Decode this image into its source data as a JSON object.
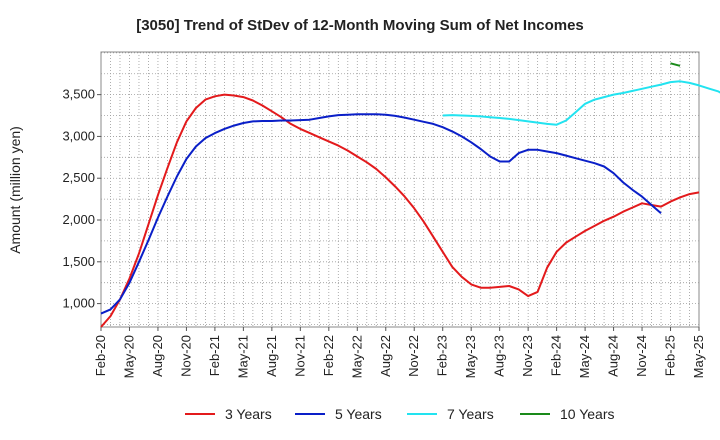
{
  "chart_data": {
    "type": "line",
    "title": "[3050]  Trend of StDev of 12-Month Moving Sum of Net Incomes",
    "ylabel": "Amount (million yen)",
    "xlabel": "",
    "x_start": "2020-02",
    "x_ticks": [
      "Feb-20",
      "May-20",
      "Aug-20",
      "Nov-20",
      "Feb-21",
      "May-21",
      "Aug-21",
      "Nov-21",
      "Feb-22",
      "May-22",
      "Aug-22",
      "Nov-22",
      "Feb-23",
      "May-23",
      "Aug-23",
      "Nov-23",
      "Feb-24",
      "May-24",
      "Aug-24",
      "Nov-24",
      "Feb-25",
      "May-25"
    ],
    "y_ticks": [
      1000,
      1500,
      2000,
      2500,
      3000,
      3500
    ],
    "y_tick_labels": [
      "1,000",
      "1,500",
      "2,000",
      "2,500",
      "3,000",
      "3,500"
    ],
    "ylim": [
      720,
      4010
    ],
    "grid": true,
    "legend_position": "bottom",
    "series": [
      {
        "name": "3 Years",
        "color": "#e31a1c",
        "start_month": 0,
        "values": [
          720,
          850,
          1050,
          1300,
          1600,
          1950,
          2300,
          2620,
          2930,
          3180,
          3340,
          3440,
          3480,
          3500,
          3490,
          3470,
          3430,
          3370,
          3300,
          3230,
          3150,
          3090,
          3040,
          2990,
          2940,
          2890,
          2830,
          2760,
          2690,
          2610,
          2510,
          2400,
          2280,
          2140,
          1980,
          1800,
          1620,
          1440,
          1320,
          1230,
          1190,
          1190,
          1200,
          1210,
          1170,
          1090,
          1140,
          1430,
          1620,
          1730,
          1800,
          1870,
          1930,
          1990,
          2040,
          2100,
          2150,
          2200,
          2180,
          2160,
          2220,
          2270,
          2310,
          2330
        ]
      },
      {
        "name": "5 Years",
        "color": "#0a1fc8",
        "start_month": 0,
        "values": [
          880,
          930,
          1050,
          1250,
          1500,
          1760,
          2030,
          2280,
          2520,
          2730,
          2880,
          2980,
          3040,
          3090,
          3130,
          3160,
          3180,
          3185,
          3185,
          3190,
          3190,
          3195,
          3200,
          3220,
          3240,
          3255,
          3260,
          3265,
          3265,
          3265,
          3260,
          3245,
          3225,
          3200,
          3175,
          3150,
          3110,
          3060,
          3000,
          2930,
          2850,
          2760,
          2700,
          2700,
          2800,
          2840,
          2840,
          2820,
          2800,
          2770,
          2740,
          2710,
          2680,
          2640,
          2560,
          2450,
          2360,
          2280,
          2180,
          2080
        ]
      },
      {
        "name": "7 Years",
        "color": "#22e3f0",
        "start_month": 36,
        "values": [
          3250,
          3255,
          3250,
          3245,
          3240,
          3230,
          3220,
          3210,
          3195,
          3180,
          3165,
          3150,
          3140,
          3190,
          3290,
          3390,
          3440,
          3470,
          3500,
          3520,
          3545,
          3570,
          3595,
          3620,
          3650,
          3660,
          3640,
          3610,
          3575,
          3540,
          3480
        ]
      },
      {
        "name": "10 Years",
        "color": "#1a8a1a",
        "start_month": 60,
        "values": [
          3875,
          3845
        ]
      }
    ]
  }
}
